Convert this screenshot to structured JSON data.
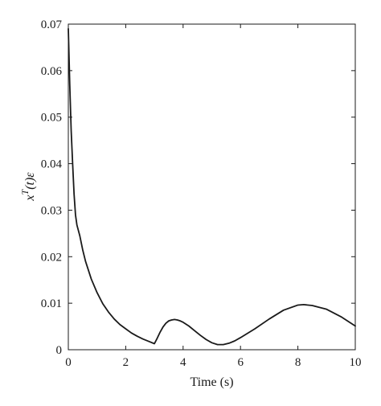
{
  "chart_data": {
    "type": "line",
    "xlabel": "Time (s)",
    "ylabel": {
      "base": "x",
      "superscript": "T",
      "rest": "(t)ε"
    },
    "xlim": [
      0,
      10
    ],
    "ylim": [
      0,
      0.07
    ],
    "xticks": [
      0,
      2,
      4,
      6,
      8,
      10
    ],
    "xtick_labels": [
      "0",
      "2",
      "4",
      "6",
      "8",
      "10"
    ],
    "yticks": [
      0,
      0.01,
      0.02,
      0.03,
      0.04,
      0.05,
      0.06,
      0.07
    ],
    "ytick_labels": [
      "0",
      "0.01",
      "0.02",
      "0.03",
      "0.04",
      "0.05",
      "0.06",
      "0.07"
    ],
    "grid": false,
    "series": [
      {
        "x": [
          0,
          0.05,
          0.1,
          0.15,
          0.2,
          0.25,
          0.3,
          0.4,
          0.5,
          0.6,
          0.8,
          1.0,
          1.2,
          1.4,
          1.6,
          1.8,
          2.0,
          2.2,
          2.4,
          2.6,
          2.8,
          3.0,
          3.1,
          3.2,
          3.3,
          3.4,
          3.5,
          3.6,
          3.7,
          3.8,
          3.9,
          4.0,
          4.2,
          4.4,
          4.6,
          4.8,
          5.0,
          5.2,
          5.4,
          5.6,
          5.8,
          6.0,
          6.5,
          7.0,
          7.5,
          8.0,
          8.2,
          8.5,
          9.0,
          9.5,
          10.0
        ],
        "y": [
          0.069,
          0.057,
          0.047,
          0.04,
          0.0335,
          0.029,
          0.0268,
          0.0245,
          0.0215,
          0.019,
          0.0152,
          0.0123,
          0.0099,
          0.0081,
          0.0066,
          0.0054,
          0.0045,
          0.0036,
          0.0029,
          0.0023,
          0.0018,
          0.0013,
          0.0025,
          0.0038,
          0.0049,
          0.0057,
          0.0062,
          0.0064,
          0.0065,
          0.0064,
          0.0062,
          0.0059,
          0.0051,
          0.0041,
          0.0031,
          0.0022,
          0.0015,
          0.0011,
          0.0011,
          0.0014,
          0.0019,
          0.0026,
          0.0045,
          0.0066,
          0.0085,
          0.0096,
          0.0097,
          0.0095,
          0.0087,
          0.0071,
          0.0051
        ]
      }
    ]
  }
}
